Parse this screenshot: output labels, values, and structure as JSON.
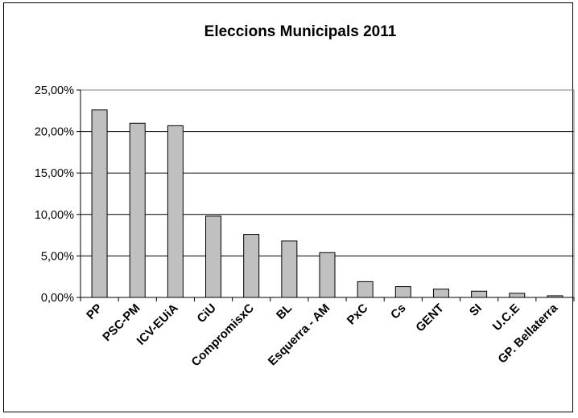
{
  "chart_data": {
    "type": "bar",
    "title": "Eleccions Municipals 2011",
    "xlabel": "",
    "ylabel": "",
    "categories": [
      "PP",
      "PSC-PM",
      "ICV-EUiA",
      "CiU",
      "CompromisxC",
      "BL",
      "Esquerra - AM",
      "PxC",
      "Cs",
      "GENT",
      "SI",
      "U.C.E",
      "GP. Bellaterra"
    ],
    "values": [
      22.6,
      21.0,
      20.7,
      9.8,
      7.6,
      6.8,
      5.4,
      1.9,
      1.3,
      1.0,
      0.75,
      0.5,
      0.2
    ],
    "ylim": [
      0,
      25
    ],
    "yticks": [
      0,
      5,
      10,
      15,
      20,
      25
    ],
    "ytick_labels": [
      "0,00%",
      "5,00%",
      "10,00%",
      "15,00%",
      "20,00%",
      "25,00%"
    ],
    "grid": true,
    "legend": "none",
    "colors": {
      "bar_fill": "#c0c0c0",
      "bar_stroke": "#000000",
      "plot_background": "#ffffff",
      "gridline": "#000000"
    }
  }
}
